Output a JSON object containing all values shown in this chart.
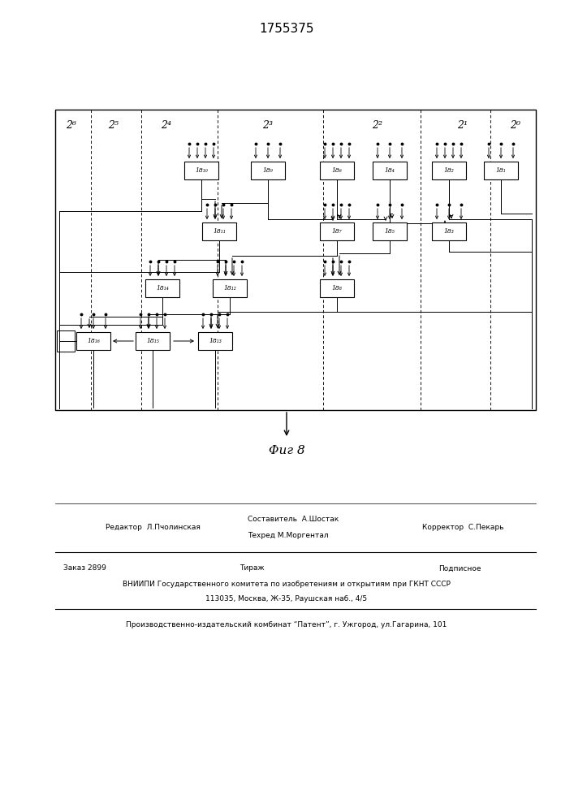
{
  "title": "1755375",
  "fig_label": "Φиг 8",
  "col_labels": [
    "2⁶",
    "2⁵",
    "2⁴",
    "2³",
    "2²",
    "2¹",
    "2⁰"
  ],
  "footer_line1_left": "Редактор  Л.Пчолинская",
  "footer_comp1": "Составитель  А.Шостак",
  "footer_comp2": "Техред М.Моргентал",
  "footer_line1_right": "Корректор  С.Пекарь",
  "footer_line2_left": "Заказ 2899",
  "footer_line2_center": "Тираж",
  "footer_line2_right": "Подписное",
  "footer_line3": "ВНИИПИ Государственного комитета по изобретениям и открытиям при ГКНТ СССР",
  "footer_line4": "113035, Москва, Ж-35, Раушская наб., 4/5",
  "footer_line5": "Производственно-издательский комбинат “Патент”, г. Ужгород, ул.Гагарина, 101"
}
